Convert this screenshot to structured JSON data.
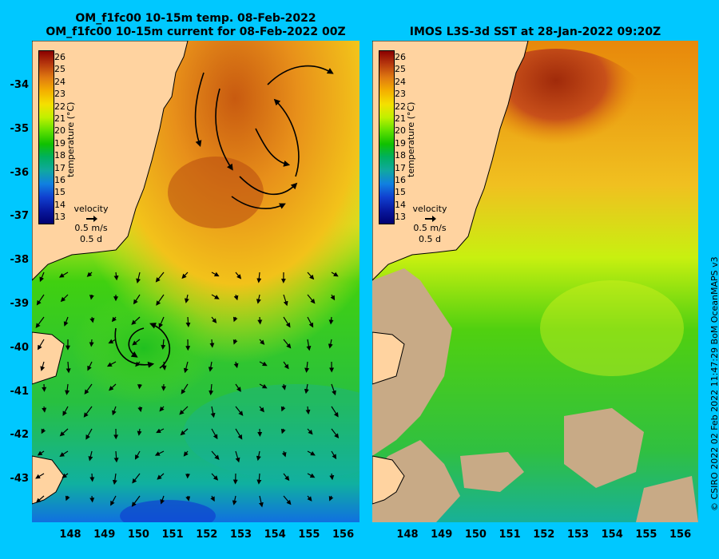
{
  "panels": {
    "left": {
      "title_line1": "OM_f1fc00 10-15m temp. 08-Feb-2022",
      "title_line2": "OM_f1fc00 10-15m current for 08-Feb-2022 00Z"
    },
    "right": {
      "title": "IMOS L3S-3d SST at 28-Jan-2022 09:20Z"
    }
  },
  "colorbar": {
    "label": "temperature (°C)",
    "ticks": [
      "26",
      "25",
      "24",
      "23",
      "22",
      "21",
      "20",
      "19",
      "18",
      "17",
      "16",
      "15",
      "14",
      "13"
    ],
    "colors": [
      "#8b0000",
      "#b83a0e",
      "#e07a10",
      "#f4b000",
      "#f5e000",
      "#c0f000",
      "#60e000",
      "#10c000",
      "#00b060",
      "#10a8a0",
      "#1080e0",
      "#1040d0",
      "#0818a0",
      "#000070"
    ]
  },
  "velocity_legend": {
    "title": "velocity",
    "speed": "0.5 m/s",
    "duration": "0.5 d"
  },
  "axes": {
    "latitudes": [
      "-34",
      "-35",
      "-36",
      "-37",
      "-38",
      "-39",
      "-40",
      "-41",
      "-42",
      "-43"
    ],
    "longitudes": [
      "148",
      "149",
      "150",
      "151",
      "152",
      "153",
      "154",
      "155",
      "156"
    ]
  },
  "credit": "© CSIRO 2022    02 Feb 2022 11:47:29 BoM OceanMAPS v3",
  "colors": {
    "background": "#00c8ff",
    "land": "#ffd3a0",
    "land_masked": "#c8aa86"
  }
}
